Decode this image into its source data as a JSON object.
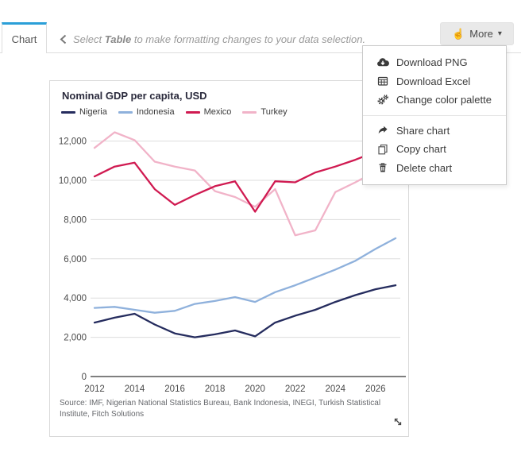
{
  "tabs": {
    "chart_label": "Chart"
  },
  "hint": {
    "prefix": "Select ",
    "bold": "Table",
    "suffix": " to make formatting changes to your data selection."
  },
  "toolbar": {
    "more_label": "More",
    "hand_icon": "☝",
    "caret_icon": "▾"
  },
  "menu": {
    "groups": [
      {
        "items": [
          {
            "icon": "cloud-download-icon",
            "label": "Download PNG"
          },
          {
            "icon": "table-icon",
            "label": "Download Excel"
          },
          {
            "icon": "gears-icon",
            "label": "Change color palette"
          }
        ]
      },
      {
        "items": [
          {
            "icon": "share-icon",
            "label": "Share chart"
          },
          {
            "icon": "copy-icon",
            "label": "Copy chart"
          },
          {
            "icon": "trash-icon",
            "label": "Delete chart"
          }
        ]
      }
    ]
  },
  "colors": {
    "tab_accent": "#2b9fd8",
    "gridline": "#dddddd",
    "axis": "#333333"
  },
  "chart_data": {
    "type": "line",
    "title": "Nominal GDP per capita, USD",
    "x": [
      2012,
      2013,
      2014,
      2015,
      2016,
      2017,
      2018,
      2019,
      2020,
      2021,
      2022,
      2023,
      2024,
      2025,
      2026,
      2027
    ],
    "xticks": [
      2012,
      2014,
      2016,
      2018,
      2020,
      2022,
      2024,
      2026
    ],
    "yticks": [
      0,
      2000,
      4000,
      6000,
      8000,
      10000,
      12000
    ],
    "ylim": [
      0,
      13000
    ],
    "grid": true,
    "legend_position": "top-left",
    "series": [
      {
        "name": "Nigeria",
        "color": "#252c5e",
        "values": [
          2750,
          3000,
          3200,
          2650,
          2200,
          2000,
          2150,
          2350,
          2050,
          2750,
          3100,
          3400,
          3800,
          4150,
          4450,
          4650
        ]
      },
      {
        "name": "Indonesia",
        "color": "#8fb1dc",
        "values": [
          3500,
          3550,
          3400,
          3250,
          3350,
          3700,
          3850,
          4050,
          3800,
          4300,
          4650,
          5050,
          5450,
          5900,
          6500,
          7050
        ]
      },
      {
        "name": "Mexico",
        "color": "#d01a51",
        "values": [
          10200,
          10700,
          10900,
          9550,
          8750,
          9250,
          9700,
          9950,
          8400,
          9950,
          9900,
          10400,
          10700,
          11050,
          11450,
          11850
        ]
      },
      {
        "name": "Turkey",
        "color": "#f1b3c8",
        "values": [
          11650,
          12450,
          12050,
          10950,
          10700,
          10500,
          9450,
          9150,
          8650,
          9550,
          7200,
          7450,
          9400,
          9900,
          10450,
          11000
        ]
      }
    ],
    "source": "Source: IMF, Nigerian National Statistics Bureau, Bank Indonesia, INEGI, Turkish Statistical Institute, Fitch Solutions"
  }
}
